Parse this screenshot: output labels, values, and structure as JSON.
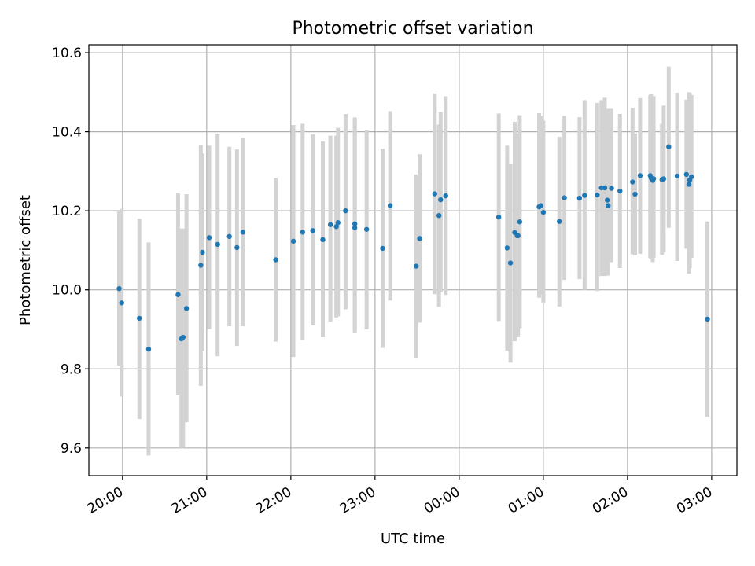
{
  "chart_data": {
    "type": "scatter",
    "title": "Photometric offset variation",
    "xlabel": "UTC time",
    "ylabel": "Photometric offset",
    "x_is_time_of_night": true,
    "x_range_hours_from_20": [
      -0.4,
      7.3
    ],
    "ylim": [
      9.53,
      10.62
    ],
    "grid": true,
    "x_ticks": [
      "20:00",
      "21:00",
      "22:00",
      "23:00",
      "00:00",
      "01:00",
      "02:00",
      "03:00"
    ],
    "y_ticks": [
      9.6,
      9.8,
      10.0,
      10.2,
      10.4,
      10.6
    ],
    "y_tick_labels": [
      "9.6",
      "9.8",
      "10.0",
      "10.2",
      "10.4",
      "10.6"
    ],
    "colors": {
      "points": "#1f77b4",
      "error_bars": "#d3d3d3",
      "grid": "#b0b0b0"
    },
    "series": [
      {
        "x_hours_from_20": [
          -0.04,
          -0.01,
          0.2,
          0.31,
          0.66,
          0.7,
          0.72,
          0.76,
          0.93,
          0.95,
          1.03,
          1.13,
          1.27,
          1.36,
          1.43,
          1.82,
          2.03,
          2.14,
          2.26,
          2.38,
          2.47,
          2.54,
          2.56,
          2.65,
          2.76,
          2.76,
          2.9,
          3.09,
          3.18,
          3.49,
          3.53,
          3.71,
          3.76,
          3.78,
          3.84,
          4.47,
          4.57,
          4.61,
          4.66,
          4.69,
          4.7,
          4.72,
          4.95,
          4.97,
          5.0,
          5.19,
          5.25,
          5.43,
          5.49,
          5.64,
          5.69,
          5.73,
          5.76,
          5.77,
          5.81,
          5.91,
          6.06,
          6.09,
          6.15,
          6.27,
          6.28,
          6.3,
          6.31,
          6.41,
          6.43,
          6.49,
          6.59,
          6.7,
          6.73,
          6.74,
          6.76,
          6.95
        ],
        "y": [
          10.003,
          9.967,
          9.928,
          9.85,
          9.988,
          9.876,
          9.88,
          9.953,
          10.062,
          10.095,
          10.132,
          10.115,
          10.135,
          10.107,
          10.146,
          10.076,
          10.123,
          10.146,
          10.15,
          10.127,
          10.165,
          10.16,
          10.17,
          10.2,
          10.167,
          10.157,
          10.153,
          10.105,
          10.213,
          10.06,
          10.13,
          10.243,
          10.188,
          10.228,
          10.238,
          10.184,
          10.106,
          10.068,
          10.145,
          10.137,
          10.137,
          10.172,
          10.21,
          10.213,
          10.196,
          10.173,
          10.233,
          10.232,
          10.239,
          10.24,
          10.258,
          10.258,
          10.227,
          10.213,
          10.257,
          10.25,
          10.273,
          10.242,
          10.289,
          10.289,
          10.283,
          10.277,
          10.281,
          10.279,
          10.281,
          10.362,
          10.288,
          10.292,
          10.267,
          10.278,
          10.286,
          9.926
        ],
        "yerr_low": [
          9.808,
          9.73,
          9.673,
          9.581,
          9.733,
          9.6,
          9.6,
          9.665,
          9.757,
          9.845,
          9.9,
          9.832,
          9.908,
          9.858,
          9.908,
          9.869,
          9.83,
          9.873,
          9.91,
          9.88,
          9.92,
          9.93,
          9.933,
          9.951,
          9.89,
          9.9,
          9.9,
          9.853,
          9.973,
          9.826,
          9.917,
          9.989,
          9.957,
          9.994,
          9.987,
          9.921,
          9.846,
          9.816,
          9.87,
          9.88,
          9.88,
          9.903,
          9.98,
          9.988,
          9.967,
          9.958,
          10.025,
          10.027,
          10.0,
          9.997,
          10.035,
          10.035,
          10.046,
          10.036,
          10.07,
          10.055,
          10.09,
          10.088,
          10.091,
          10.081,
          10.078,
          10.07,
          10.081,
          10.089,
          10.096,
          10.157,
          10.073,
          10.104,
          10.041,
          10.055,
          10.081,
          9.679
        ],
        "yerr_high": [
          10.2,
          10.205,
          10.18,
          10.12,
          10.246,
          10.155,
          10.155,
          10.242,
          10.367,
          10.345,
          10.365,
          10.395,
          10.362,
          10.355,
          10.385,
          10.283,
          10.417,
          10.42,
          10.393,
          10.375,
          10.39,
          10.39,
          10.41,
          10.445,
          10.43,
          10.436,
          10.405,
          10.357,
          10.452,
          10.292,
          10.343,
          10.497,
          10.418,
          10.45,
          10.49,
          10.446,
          10.365,
          10.32,
          10.425,
          10.395,
          10.395,
          10.442,
          10.447,
          10.44,
          10.428,
          10.387,
          10.44,
          10.437,
          10.48,
          10.473,
          10.48,
          10.486,
          10.407,
          10.458,
          10.458,
          10.445,
          10.46,
          10.395,
          10.485,
          10.493,
          10.495,
          10.484,
          10.49,
          10.42,
          10.466,
          10.565,
          10.499,
          10.481,
          10.5,
          10.498,
          10.493,
          10.173
        ]
      }
    ]
  }
}
